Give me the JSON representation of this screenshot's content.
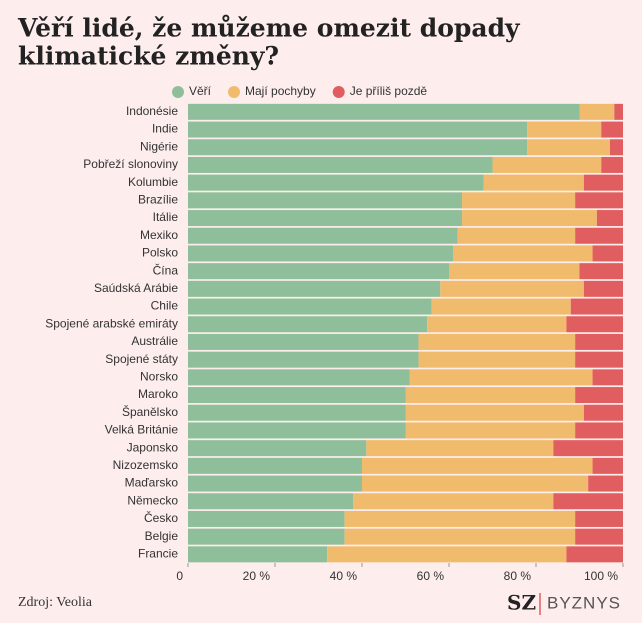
{
  "chart_data": {
    "type": "stacked-barh",
    "title_lines": [
      "Věří lidé, že můžeme omezit dopady",
      "klimatické změny?"
    ],
    "categories": [
      "Indonésie",
      "Indie",
      "Nigérie",
      "Pobřeží slonoviny",
      "Kolumbie",
      "Brazílie",
      "Itálie",
      "Mexiko",
      "Polsko",
      "Čína",
      "Saúdská Arábie",
      "Chile",
      "Spojené arabské emiráty",
      "Austrálie",
      "Spojené státy",
      "Norsko",
      "Maroko",
      "Španělsko",
      "Velká Británie",
      "Japonsko",
      "Nizozemsko",
      "Maďarsko",
      "Německo",
      "Česko",
      "Belgie",
      "Francie"
    ],
    "series": [
      {
        "name": "Věří",
        "color": "#8fbf9a",
        "values": [
          90,
          78,
          78,
          70,
          68,
          63,
          63,
          62,
          61,
          60,
          58,
          56,
          55,
          53,
          53,
          51,
          50,
          50,
          50,
          41,
          40,
          40,
          38,
          36,
          36,
          32
        ]
      },
      {
        "name": "Mají pochyby",
        "color": "#f1bb6e",
        "values": [
          8,
          17,
          19,
          25,
          23,
          26,
          31,
          27,
          32,
          30,
          33,
          32,
          32,
          36,
          36,
          42,
          39,
          41,
          39,
          43,
          53,
          52,
          46,
          53,
          53,
          55
        ]
      },
      {
        "name": "Je příliš pozdě",
        "color": "#e05e60",
        "values": [
          2,
          5,
          3,
          5,
          9,
          11,
          6,
          11,
          7,
          10,
          9,
          12,
          13,
          11,
          11,
          7,
          11,
          9,
          11,
          16,
          7,
          8,
          16,
          11,
          11,
          13
        ]
      }
    ],
    "xlim": [
      0,
      100
    ],
    "xticks": [
      0,
      {
        "value": 20,
        "label": "20 %"
      },
      {
        "value": 40,
        "label": "40 %"
      },
      {
        "value": 60,
        "label": "60 %"
      },
      {
        "value": 80,
        "label": "80 %"
      },
      {
        "value": 100,
        "label": "100 %"
      }
    ],
    "source": "Zdroj: Veolia",
    "logo": [
      "SZ",
      "BYZNYS"
    ]
  }
}
